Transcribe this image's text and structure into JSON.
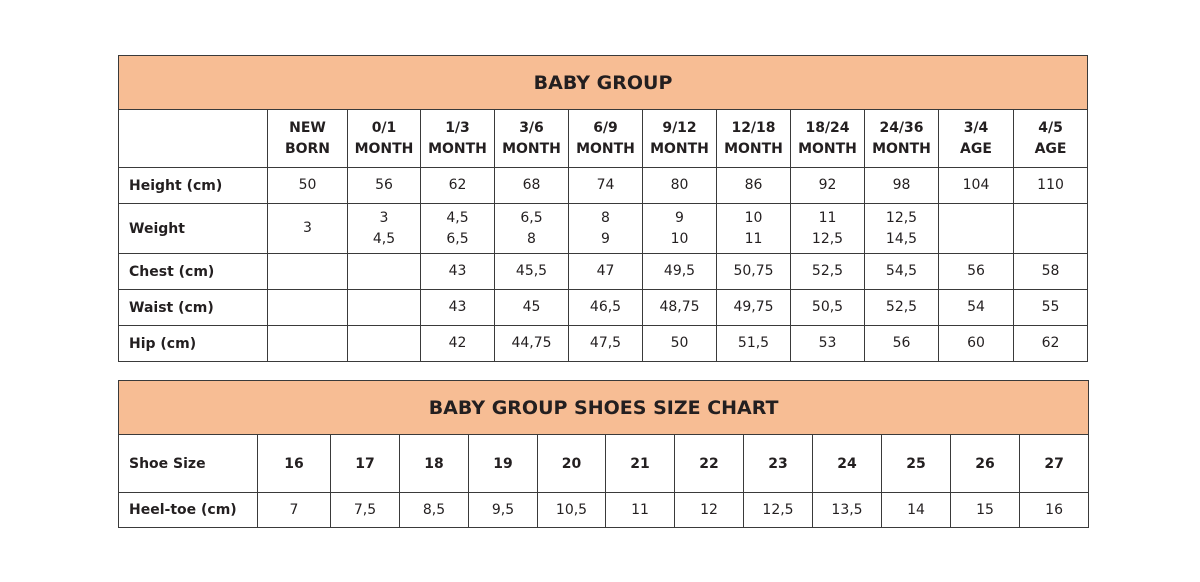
{
  "clothing": {
    "title": "BABY GROUP",
    "columns": [
      [
        "NEW",
        "BORN"
      ],
      [
        "0/1",
        "MONTH"
      ],
      [
        "1/3",
        "MONTH"
      ],
      [
        "3/6",
        "MONTH"
      ],
      [
        "6/9",
        "MONTH"
      ],
      [
        "9/12",
        "MONTH"
      ],
      [
        "12/18",
        "MONTH"
      ],
      [
        "18/24",
        "MONTH"
      ],
      [
        "24/36",
        "MONTH"
      ],
      [
        "3/4",
        "AGE"
      ],
      [
        "4/5",
        "AGE"
      ]
    ],
    "rows": [
      {
        "label": "Height (cm)",
        "values": [
          [
            "50"
          ],
          [
            "56"
          ],
          [
            "62"
          ],
          [
            "68"
          ],
          [
            "74"
          ],
          [
            "80"
          ],
          [
            "86"
          ],
          [
            "92"
          ],
          [
            "98"
          ],
          [
            "104"
          ],
          [
            "110"
          ]
        ]
      },
      {
        "label": "Weight",
        "values": [
          [
            "3"
          ],
          [
            "3",
            "4,5"
          ],
          [
            "4,5",
            "6,5"
          ],
          [
            "6,5",
            "8"
          ],
          [
            "8",
            "9"
          ],
          [
            "9",
            "10"
          ],
          [
            "10",
            "11"
          ],
          [
            "11",
            "12,5"
          ],
          [
            "12,5",
            "14,5"
          ],
          [
            ""
          ],
          [
            ""
          ]
        ]
      },
      {
        "label": "Chest (cm)",
        "values": [
          [
            ""
          ],
          [
            ""
          ],
          [
            "43"
          ],
          [
            "45,5"
          ],
          [
            "47"
          ],
          [
            "49,5"
          ],
          [
            "50,75"
          ],
          [
            "52,5"
          ],
          [
            "54,5"
          ],
          [
            "56"
          ],
          [
            "58"
          ]
        ]
      },
      {
        "label": "Waist (cm)",
        "values": [
          [
            ""
          ],
          [
            ""
          ],
          [
            "43"
          ],
          [
            "45"
          ],
          [
            "46,5"
          ],
          [
            "48,75"
          ],
          [
            "49,75"
          ],
          [
            "50,5"
          ],
          [
            "52,5"
          ],
          [
            "54"
          ],
          [
            "55"
          ]
        ]
      },
      {
        "label": "Hip (cm)",
        "values": [
          [
            ""
          ],
          [
            ""
          ],
          [
            "42"
          ],
          [
            "44,75"
          ],
          [
            "47,5"
          ],
          [
            "50"
          ],
          [
            "51,5"
          ],
          [
            "53"
          ],
          [
            "56"
          ],
          [
            "60"
          ],
          [
            "62"
          ]
        ]
      }
    ]
  },
  "shoes": {
    "title": "BABY GROUP SHOES SIZE CHART",
    "size_label": "Shoe Size",
    "sizes": [
      "16",
      "17",
      "18",
      "19",
      "20",
      "21",
      "22",
      "23",
      "24",
      "25",
      "26",
      "27"
    ],
    "heel_label": "Heel-toe (cm)",
    "heel_toe": [
      "7",
      "7,5",
      "8,5",
      "9,5",
      "10,5",
      "11",
      "12",
      "12,5",
      "13,5",
      "14",
      "15",
      "16"
    ]
  },
  "colors": {
    "header_fill": "#f7bd94",
    "border": "#3a3a3a"
  }
}
